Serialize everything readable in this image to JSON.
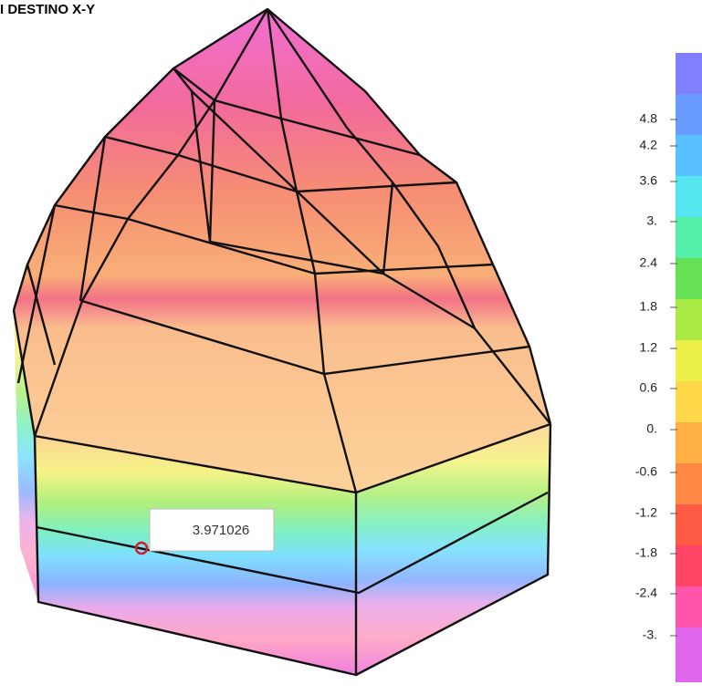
{
  "header": {
    "title": "I DESTINO X-Y"
  },
  "tooltip": {
    "text": "3.971026"
  },
  "legend": {
    "labels": [
      "4.8",
      "4.2",
      "3.6",
      "3.",
      "2.4",
      "1.8",
      "1.2",
      "0.6",
      "0.",
      "-0.6",
      "-1.2",
      "-1.8",
      "-2.4",
      "-3."
    ]
  }
}
